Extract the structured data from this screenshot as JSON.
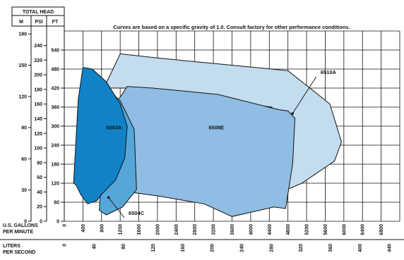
{
  "chart_data": {
    "type": "area",
    "note": "Curves are based on a specific gravity of 1.0. Consult factory for other performance conditions.",
    "y_axis_header": "TOTAL HEAD",
    "y_units": [
      "M",
      "PSI",
      "FT"
    ],
    "x_primary_label": [
      "U.S. GALLONS",
      "PER MINUTE"
    ],
    "x_secondary_label": [
      "LITERS",
      "PER SECOND"
    ],
    "ft_ticks": [
      "0",
      "60",
      "120",
      "180",
      "240",
      "300",
      "360",
      "420",
      "480",
      "540"
    ],
    "psi_ticks": [
      "0",
      "20",
      "40",
      "60",
      "80",
      "100",
      "120",
      "140",
      "160",
      "180",
      "200",
      "220",
      "240"
    ],
    "m_ticks": [
      "0",
      "30",
      "60",
      "90",
      "120",
      "150",
      "180"
    ],
    "gpm_ticks": [
      "0",
      "400",
      "800",
      "1200",
      "1600",
      "2000",
      "2400",
      "2800",
      "3200",
      "3600",
      "4000",
      "4400",
      "4800",
      "5200",
      "5600",
      "6000",
      "6400",
      "6800"
    ],
    "lps_ticks": [
      "0",
      "40",
      "80",
      "120",
      "160",
      "200",
      "240",
      "280",
      "320",
      "360",
      "400",
      "440"
    ],
    "xlim_gpm": [
      0,
      7200
    ],
    "ylim_ft": [
      0,
      600
    ],
    "series": [
      {
        "name": "6510A",
        "color": "#c3dcee",
        "points": [
          [
            850,
            420
          ],
          [
            1200,
            528
          ],
          [
            2000,
            515
          ],
          [
            4800,
            475
          ],
          [
            5700,
            370
          ],
          [
            5950,
            250
          ],
          [
            5800,
            190
          ],
          [
            5100,
            120
          ],
          [
            4700,
            95
          ],
          [
            4600,
            330
          ],
          [
            4450,
            360
          ],
          [
            1500,
            420
          ]
        ]
      },
      {
        "name": "6508E",
        "color": "#8fbde3",
        "points": [
          [
            1100,
            370
          ],
          [
            1350,
            425
          ],
          [
            1900,
            420
          ],
          [
            3300,
            400
          ],
          [
            4600,
            352
          ],
          [
            4800,
            348
          ],
          [
            4950,
            325
          ],
          [
            4900,
            180
          ],
          [
            4750,
            40
          ],
          [
            4500,
            45
          ],
          [
            3600,
            15
          ],
          [
            3000,
            55
          ],
          [
            2000,
            80
          ],
          [
            1000,
            100
          ],
          [
            950,
            345
          ]
        ]
      },
      {
        "name": "6504C",
        "color": "#56a6da",
        "points": [
          [
            600,
            460
          ],
          [
            900,
            420
          ],
          [
            1200,
            380
          ],
          [
            1500,
            290
          ],
          [
            1550,
            100
          ],
          [
            1250,
            45
          ],
          [
            900,
            20
          ],
          [
            750,
            35
          ],
          [
            850,
            255
          ],
          [
            800,
            445
          ]
        ]
      },
      {
        "name": "6503A",
        "color": "#1182c8",
        "points": [
          [
            400,
            485
          ],
          [
            600,
            480
          ],
          [
            900,
            440
          ],
          [
            1200,
            370
          ],
          [
            1350,
            300
          ],
          [
            1300,
            200
          ],
          [
            1100,
            130
          ],
          [
            800,
            85
          ],
          [
            700,
            65
          ],
          [
            500,
            55
          ],
          [
            350,
            85
          ],
          [
            250,
            115
          ],
          [
            200,
            120
          ],
          [
            300,
            385
          ]
        ]
      }
    ],
    "labels": [
      {
        "text": "6510A",
        "x": 5500,
        "y": 465,
        "pointer_to": [
          4900,
          340
        ]
      },
      {
        "text": "6508E",
        "x": 3100,
        "y": 290
      },
      {
        "text": "6504C",
        "x": 1380,
        "y": 20,
        "pointer_to": [
          950,
          75
        ]
      },
      {
        "text": "6503A",
        "x": 900,
        "y": 290
      }
    ]
  }
}
